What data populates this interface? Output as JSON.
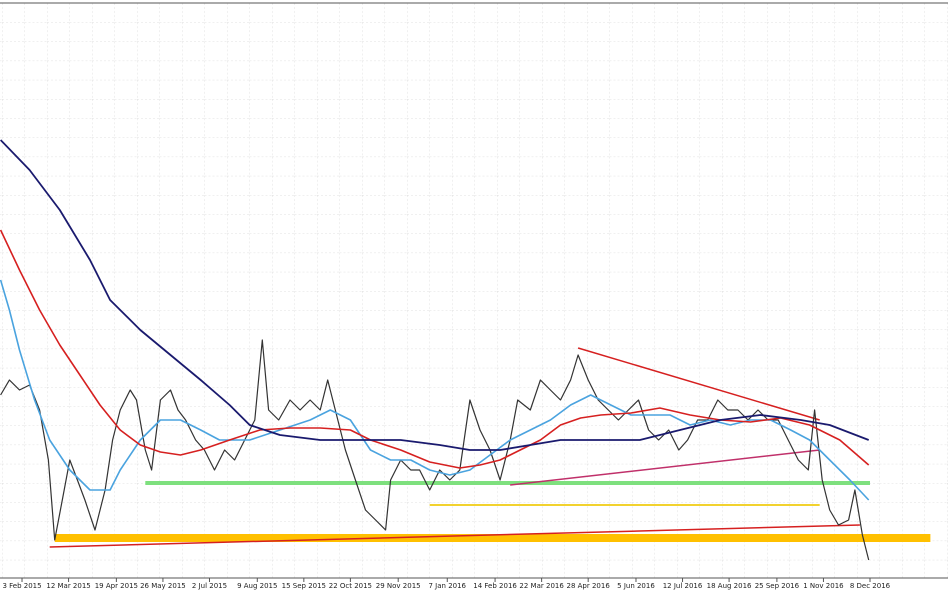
{
  "chart_data": {
    "type": "line",
    "grid": true,
    "xlim": [
      15.5,
      769
    ],
    "ylim": [
      0,
      575
    ],
    "xticks": [
      {
        "value": 33,
        "label": "3 Feb 2015"
      },
      {
        "value": 70,
        "label": "12 Mar 2015"
      },
      {
        "value": 108,
        "label": "19 Apr 2015"
      },
      {
        "value": 145,
        "label": "26 May 2015"
      },
      {
        "value": 182,
        "label": "2 Jul 2015"
      },
      {
        "value": 220,
        "label": "9 Aug 2015"
      },
      {
        "value": 257,
        "label": "15 Sep 2015"
      },
      {
        "value": 294,
        "label": "22 Oct 2015"
      },
      {
        "value": 332,
        "label": "29 Nov 2015"
      },
      {
        "value": 371,
        "label": "7 Jan 2016"
      },
      {
        "value": 409,
        "label": "14 Feb 2016"
      },
      {
        "value": 446,
        "label": "22 Mar 2016"
      },
      {
        "value": 483,
        "label": "28 Apr 2016"
      },
      {
        "value": 521,
        "label": "5 Jun 2016"
      },
      {
        "value": 558,
        "label": "12 Jul 2016"
      },
      {
        "value": 595,
        "label": "18 Aug 2016"
      },
      {
        "value": 633,
        "label": "25 Sep 2016"
      },
      {
        "value": 670,
        "label": "1 Nov 2016"
      },
      {
        "value": 707,
        "label": "8 Dec 2016"
      }
    ],
    "series": [
      {
        "color": "#333333",
        "width": 1.2,
        "x": [
          16,
          23,
          31,
          39,
          47,
          54,
          59,
          65,
          71,
          77,
          83,
          91,
          99,
          105,
          111,
          119,
          124,
          131,
          136,
          143,
          151,
          157,
          163,
          171,
          178,
          186,
          194,
          202,
          210,
          218,
          224,
          229,
          237,
          246,
          254,
          262,
          270,
          276,
          282,
          290,
          298,
          306,
          314,
          322,
          326,
          334,
          342,
          349,
          357,
          365,
          373,
          381,
          389,
          397,
          405,
          413,
          421,
          427,
          437,
          445,
          453,
          461,
          469,
          475,
          483,
          491,
          499,
          507,
          515,
          523,
          531,
          539,
          547,
          555,
          562,
          570,
          578,
          586,
          594,
          602,
          610,
          618,
          626,
          634,
          642,
          650,
          658,
          663,
          669,
          675,
          682,
          690,
          695,
          701,
          706
        ],
        "values": [
          183,
          198,
          188,
          193,
          168,
          118,
          38,
          78,
          118,
          98,
          78,
          48,
          88,
          138,
          168,
          188,
          178,
          128,
          108,
          178,
          188,
          168,
          158,
          138,
          128,
          108,
          128,
          118,
          138,
          158,
          238,
          168,
          158,
          178,
          168,
          178,
          168,
          198,
          168,
          128,
          98,
          68,
          58,
          48,
          98,
          118,
          108,
          108,
          88,
          108,
          98,
          108,
          178,
          148,
          128,
          98,
          138,
          178,
          168,
          198,
          188,
          178,
          198,
          223,
          198,
          178,
          168,
          158,
          168,
          178,
          148,
          138,
          148,
          128,
          138,
          158,
          158,
          178,
          168,
          168,
          158,
          168,
          158,
          158,
          138,
          118,
          108,
          168,
          98,
          68,
          53,
          58,
          88,
          43,
          18
        ]
      },
      {
        "color": "#4aa3df",
        "width": 1.6,
        "x": [
          16,
          23,
          31,
          43,
          55,
          71,
          87,
          103,
          111,
          127,
          143,
          159,
          175,
          190,
          214,
          238,
          262,
          278,
          294,
          310,
          326,
          342,
          357,
          373,
          389,
          405,
          421,
          437,
          453,
          469,
          485,
          501,
          517,
          532,
          548,
          564,
          580,
          596,
          612,
          628,
          644,
          659,
          675,
          691,
          706
        ],
        "values": [
          298,
          268,
          228,
          178,
          138,
          108,
          88,
          88,
          108,
          138,
          158,
          158,
          148,
          138,
          138,
          148,
          158,
          168,
          158,
          128,
          118,
          118,
          108,
          103,
          108,
          123,
          138,
          148,
          158,
          173,
          183,
          173,
          163,
          163,
          163,
          153,
          158,
          153,
          158,
          158,
          148,
          138,
          118,
          98,
          78
        ]
      },
      {
        "color": "#d62020",
        "width": 1.6,
        "x": [
          16,
          31,
          47,
          63,
          79,
          95,
          111,
          127,
          143,
          159,
          175,
          198,
          222,
          246,
          270,
          294,
          310,
          334,
          357,
          381,
          397,
          413,
          429,
          445,
          461,
          477,
          493,
          517,
          540,
          564,
          588,
          612,
          636,
          659,
          683,
          706
        ],
        "values": [
          348,
          308,
          268,
          233,
          203,
          173,
          148,
          133,
          126,
          123,
          128,
          138,
          148,
          150,
          150,
          148,
          138,
          128,
          116,
          110,
          113,
          118,
          128,
          138,
          153,
          160,
          163,
          165,
          170,
          163,
          158,
          156,
          160,
          153,
          138,
          113
        ]
      },
      {
        "color": "#1a1a6e",
        "width": 1.8,
        "x": [
          16,
          39,
          63,
          87,
          103,
          127,
          151,
          175,
          198,
          214,
          238,
          270,
          302,
          334,
          365,
          389,
          413,
          437,
          461,
          493,
          524,
          556,
          588,
          620,
          652,
          675,
          706
        ],
        "values": [
          438,
          408,
          368,
          318,
          278,
          248,
          223,
          198,
          173,
          153,
          143,
          138,
          138,
          138,
          133,
          128,
          128,
          133,
          138,
          138,
          138,
          148,
          158,
          163,
          158,
          153,
          138
        ]
      }
    ],
    "lines": [
      {
        "x": [
          131,
          707
        ],
        "y": [
          95,
          95
        ],
        "color": "#7ee07e",
        "width": 4
      },
      {
        "x": [
          357,
          667
        ],
        "y": [
          73,
          73
        ],
        "color": "#f2d22e",
        "width": 2
      },
      {
        "x": [
          59,
          755
        ],
        "y": [
          40,
          40
        ],
        "color": "#ffc000",
        "width": 8
      },
      {
        "x": [
          55,
          699
        ],
        "y": [
          31,
          53
        ],
        "color": "#d62020",
        "width": 1.5
      },
      {
        "x": [
          475,
          667
        ],
        "y": [
          230,
          158
        ],
        "color": "#d62020",
        "width": 1.5
      },
      {
        "x": [
          421,
          667
        ],
        "y": [
          93,
          128
        ],
        "color": "#c0306a",
        "width": 1.5
      }
    ]
  }
}
